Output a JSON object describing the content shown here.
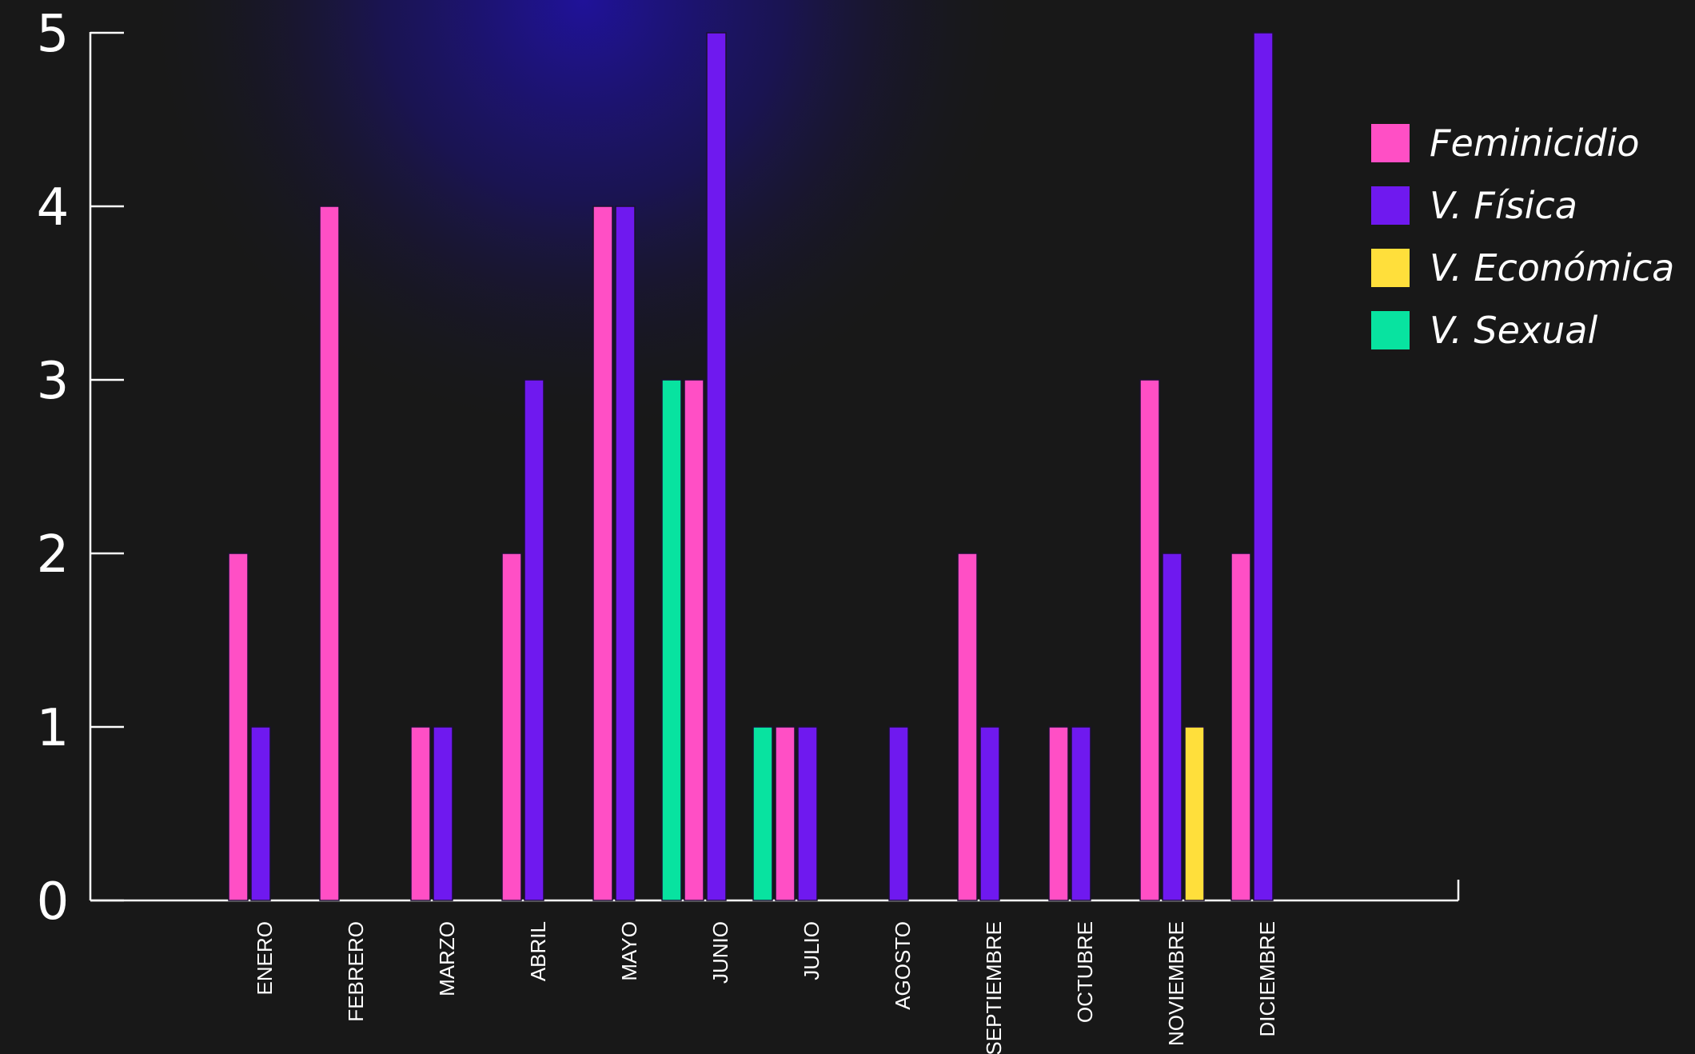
{
  "chart_data": {
    "type": "bar",
    "categories": [
      "ENERO",
      "FEBRERO",
      "MARZO",
      "ABRIL",
      "MAYO",
      "JUNIO",
      "JULIO",
      "AGOSTO",
      "SEPTIEMBRE",
      "OCTUBRE",
      "NOVIEMBRE",
      "DICIEMBRE"
    ],
    "series": [
      {
        "name": "Feminicidio",
        "color": "#ff4fc5",
        "values": [
          2,
          4,
          1,
          2,
          4,
          3,
          1,
          0,
          2,
          1,
          3,
          2
        ]
      },
      {
        "name": "V. Física",
        "color": "#6f19ef",
        "values": [
          1,
          0,
          1,
          3,
          4,
          5,
          1,
          1,
          1,
          1,
          2,
          5
        ]
      },
      {
        "name": "V. Económica",
        "color": "#ffdf3b",
        "values": [
          0,
          0,
          0,
          0,
          0,
          0,
          0,
          0,
          0,
          0,
          1,
          0
        ]
      },
      {
        "name": "V. Sexual",
        "color": "#08e3a0",
        "values": [
          0,
          0,
          0,
          0,
          0,
          3,
          1,
          0,
          0,
          0,
          0,
          0
        ]
      }
    ],
    "ylim": [
      0,
      5
    ],
    "yticks": [
      "0",
      "1",
      "2",
      "3",
      "4",
      "5"
    ],
    "legend_position": "top-right",
    "grid": false,
    "background": "#181818",
    "axis_color": "#ffffff"
  }
}
